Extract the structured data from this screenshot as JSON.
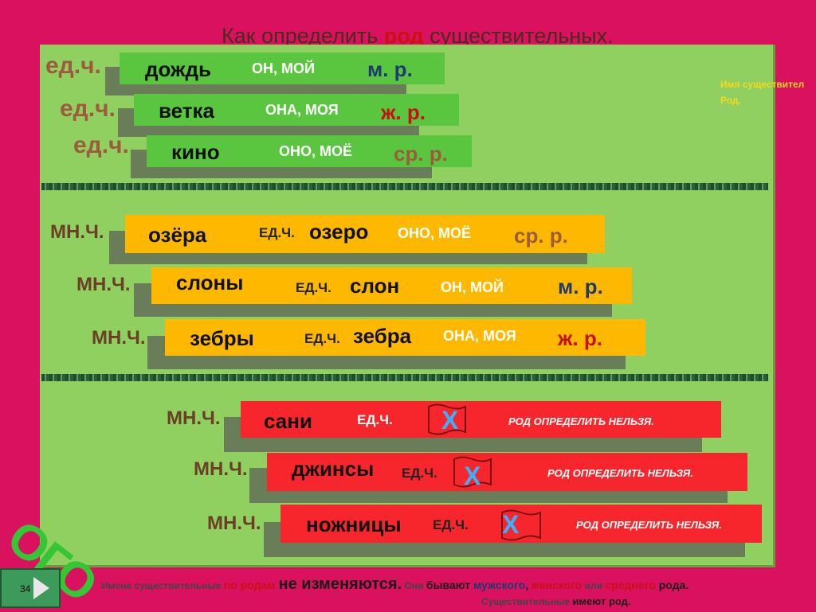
{
  "title": {
    "prefix": "Как определить ",
    "emphasis": "род",
    "suffix": " существительных."
  },
  "side_note": {
    "line1": "Имя существител",
    "line2": "Род."
  },
  "singular_rows": [
    {
      "label": "ед.ч.",
      "word": "дождь",
      "pronoun": "ОН, МОЙ",
      "gender": "м. р."
    },
    {
      "label": "ед.ч.",
      "word": "ветка",
      "pronoun": "ОНА, МОЯ",
      "gender": "ж. р."
    },
    {
      "label": "ед.ч.",
      "word": "кино",
      "pronoun": "ОНО, МОЁ",
      "gender": "ср. р."
    }
  ],
  "plural_rows": [
    {
      "label": "МН.Ч.",
      "word": "озёра",
      "ed": "ЕД.Ч.",
      "singular": "озеро",
      "pronoun": "ОНО, МОЁ",
      "gender": "ср. р."
    },
    {
      "label": "МН.Ч.",
      "word": "слоны",
      "ed": "ЕД.Ч.",
      "singular": "слон",
      "pronoun": "ОН, МОЙ",
      "gender": "м. р."
    },
    {
      "label": "МН.Ч.",
      "word": "зебры",
      "ed": "ЕД.Ч.",
      "singular": "зебра",
      "pronoun": "ОНА, МОЯ",
      "gender": "ж. р."
    }
  ],
  "no_gender_rows": [
    {
      "label": "МН.Ч.",
      "word": "сани",
      "ed": "ЕД.Ч.",
      "mark": "Х",
      "note": "РОД   ОПРЕДЕЛИТЬ   НЕЛЬЗЯ."
    },
    {
      "label": "МН.Ч.",
      "word": "джинсы",
      "ed": "ЕД.Ч.",
      "mark": "Х",
      "note": "РОД   ОПРЕДЕЛИТЬ   НЕЛЬЗЯ."
    },
    {
      "label": "МН.Ч.",
      "word": "ножницы",
      "ed": "ЕД.Ч.",
      "mark": "Х",
      "note": "РОД  ОПРЕДЕЛИТЬ   НЕЛЬЗЯ."
    }
  ],
  "ogo": "ОГО",
  "slide_number": "34",
  "footer": {
    "p1": "Имена существительные ",
    "p2": "по родам ",
    "p3": "не изменяются.",
    "p4": " Они ",
    "p5": "бывают ",
    "p6": "мужского",
    "p7": ", ",
    "p8": "женского",
    "p9": " или ",
    "p10": "среднего ",
    "p11": "рода",
    "p12": ".",
    "line2a": "Существительные ",
    "line2b": "имеют род."
  },
  "colors": {
    "background": "#d9115f",
    "panel": "#90d060",
    "green_bar": "#5ac640",
    "orange_bar": "#ffb800",
    "red_bar": "#f7262c",
    "masculine": "#1e3a72",
    "feminine": "#c81017",
    "neuter": "#9c5c3c"
  }
}
